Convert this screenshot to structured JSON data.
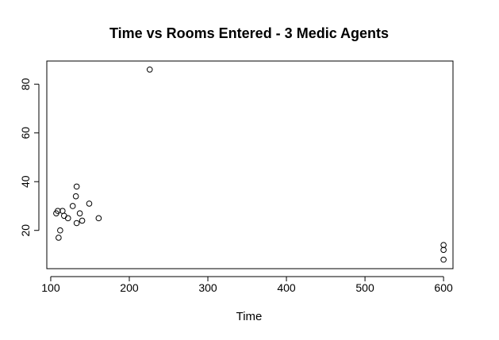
{
  "colors": {
    "background": "#ffffff",
    "axis": "#000000",
    "point": "#000000",
    "ylabel_ghost": "#e6f7f4"
  },
  "chart_data": {
    "type": "scatter",
    "title": "Time vs Rooms Entered - 3 Medic Agents",
    "xlabel": "Time",
    "ylabel": "",
    "xlim": [
      95,
      612
    ],
    "ylim": [
      4.3,
      89.5
    ],
    "x_ticks": [
      100,
      200,
      300,
      400,
      500,
      600
    ],
    "y_ticks": [
      20,
      40,
      60,
      80
    ],
    "marker": "open-circle",
    "grid": false,
    "legend": "none",
    "points": [
      {
        "x": 226,
        "y": 86
      },
      {
        "x": 107,
        "y": 27
      },
      {
        "x": 109,
        "y": 28
      },
      {
        "x": 110,
        "y": 17
      },
      {
        "x": 112,
        "y": 20
      },
      {
        "x": 115,
        "y": 28
      },
      {
        "x": 117,
        "y": 26
      },
      {
        "x": 122,
        "y": 25
      },
      {
        "x": 128,
        "y": 30
      },
      {
        "x": 132,
        "y": 34
      },
      {
        "x": 133,
        "y": 38
      },
      {
        "x": 133,
        "y": 23
      },
      {
        "x": 137,
        "y": 27
      },
      {
        "x": 140,
        "y": 24
      },
      {
        "x": 149,
        "y": 31
      },
      {
        "x": 161,
        "y": 25
      },
      {
        "x": 600,
        "y": 14
      },
      {
        "x": 600,
        "y": 12
      },
      {
        "x": 600,
        "y": 8
      }
    ]
  }
}
